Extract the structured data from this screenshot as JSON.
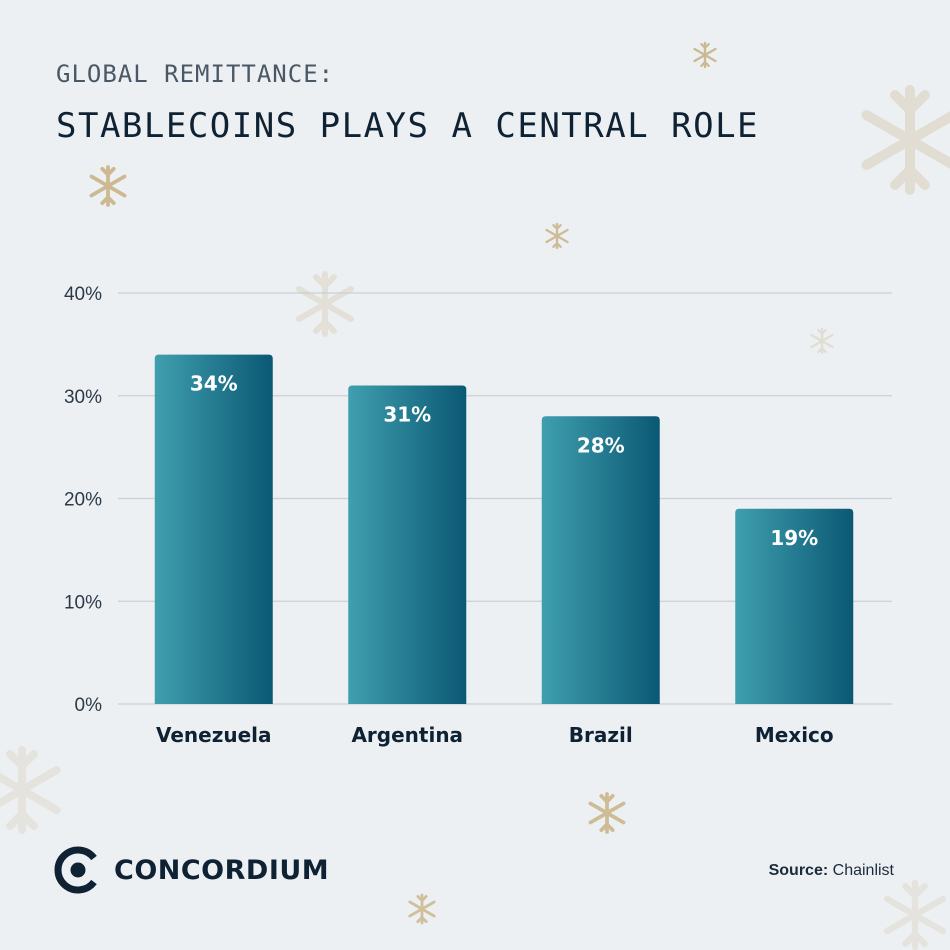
{
  "header": {
    "subtitle": "GLOBAL REMITTANCE:",
    "title": "STABLECOINS PLAYS A CENTRAL ROLE"
  },
  "brand": {
    "name": "CONCORDIUM",
    "logo_icon": "concordium-logo-icon"
  },
  "source": {
    "label": "Source:",
    "value": "Chainlist"
  },
  "colors": {
    "background": "#edf0f3",
    "bar_light": "#3f9fae",
    "bar_dark": "#0b5874",
    "gridline": "#c9d0d6",
    "snowflake": "#c9b488",
    "text_dark": "#0f2233"
  },
  "chart_data": {
    "type": "bar",
    "categories": [
      "Venezuela",
      "Argentina",
      "Brazil",
      "Mexico"
    ],
    "values": [
      34,
      31,
      28,
      19
    ],
    "data_labels": [
      "34%",
      "31%",
      "28%",
      "19%"
    ],
    "yticks": [
      0,
      10,
      20,
      30,
      40
    ],
    "ytick_labels": [
      "0%",
      "10%",
      "20%",
      "30%",
      "40%"
    ],
    "ylim": [
      0,
      40
    ],
    "grid": true,
    "legend": "none"
  }
}
